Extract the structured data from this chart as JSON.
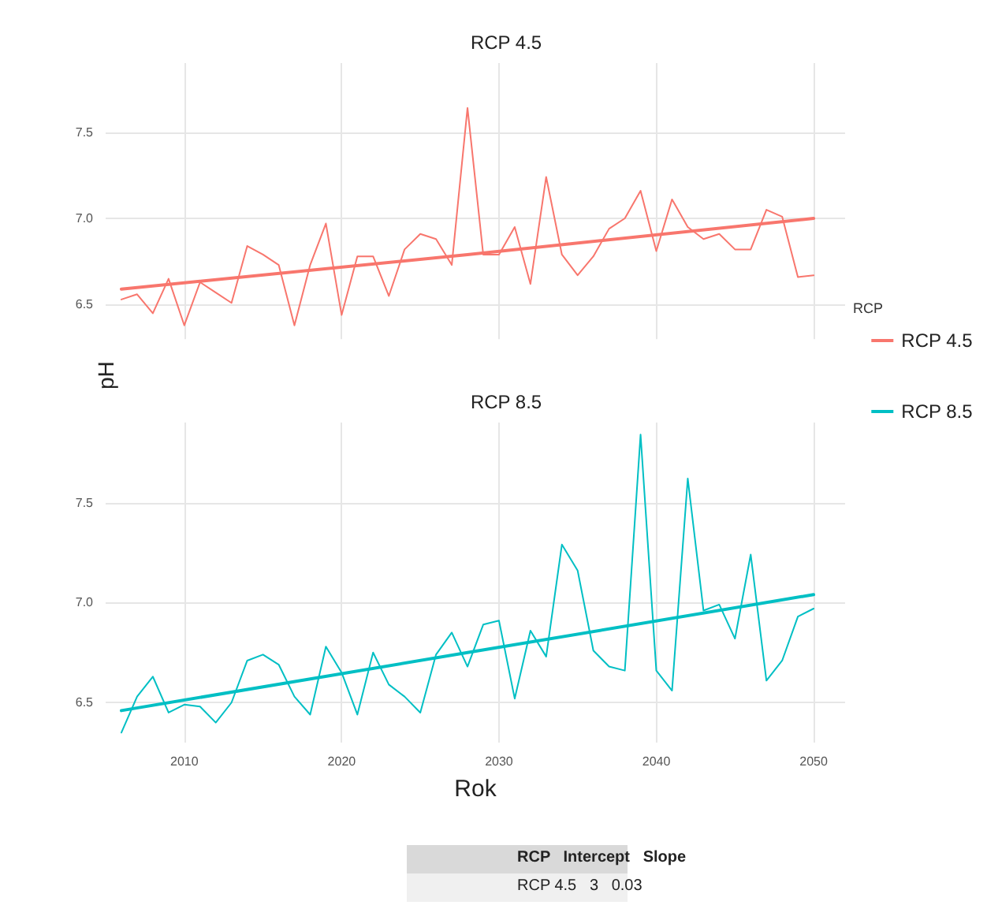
{
  "chart_data": [
    {
      "type": "line",
      "title": "RCP 4.5",
      "ylabel": "pH",
      "legend_title": "RCP",
      "legend": "right",
      "grid": true,
      "tick_labels": "y",
      "xlim": [
        2005,
        2052
      ],
      "xticks": [
        2010,
        2020,
        2030,
        2040,
        2050
      ],
      "ylim": [
        6.3,
        7.9
      ],
      "yticks": [
        {
          "value": 6.5,
          "label": "6.5"
        },
        {
          "value": 7,
          "label": "7.0"
        },
        {
          "value": 7.5,
          "label": "7.5"
        }
      ],
      "x": [
        2006,
        2007,
        2008,
        2009,
        2010,
        2011,
        2012,
        2013,
        2014,
        2015,
        2016,
        2017,
        2018,
        2019,
        2020,
        2021,
        2022,
        2023,
        2024,
        2025,
        2026,
        2027,
        2028,
        2029,
        2030,
        2031,
        2032,
        2033,
        2034,
        2035,
        2036,
        2037,
        2038,
        2039,
        2040,
        2041,
        2042,
        2043,
        2044,
        2045,
        2046,
        2047,
        2048,
        2049,
        2050
      ],
      "series": [
        {
          "name": "RCP 4.5",
          "color": "#f8766d",
          "values": [
            6.53,
            6.56,
            6.45,
            6.65,
            6.38,
            6.63,
            6.57,
            6.51,
            6.84,
            6.79,
            6.73,
            6.38,
            6.73,
            6.97,
            6.44,
            6.78,
            6.78,
            6.55,
            6.82,
            6.91,
            6.88,
            6.73,
            7.64,
            6.79,
            6.79,
            6.95,
            6.62,
            7.24,
            6.79,
            6.67,
            6.78,
            6.94,
            7.0,
            7.16,
            6.81,
            7.11,
            6.95,
            6.88,
            6.91,
            6.82,
            6.82,
            7.05,
            7.01,
            6.66,
            6.67
          ]
        },
        {
          "type": "line",
          "color": "#f8766d",
          "x": [
            2006,
            2028,
            2050
          ],
          "values": [
            6.59,
            6.79,
            7.0
          ]
        }
      ]
    },
    {
      "type": "line",
      "title": "RCP 8.5",
      "xlabel": "Rok",
      "legend": "right",
      "grid": true,
      "xlim": [
        2005,
        2052
      ],
      "xticks": [
        2010,
        2020,
        2030,
        2040,
        2050
      ],
      "ylim": [
        6.3,
        7.9
      ],
      "yticks": [
        {
          "value": 6.5,
          "label": "6.5"
        },
        {
          "value": 7,
          "label": "7.0"
        },
        {
          "value": 7.5,
          "label": "7.5"
        }
      ],
      "x": [
        2006,
        2007,
        2008,
        2009,
        2010,
        2011,
        2012,
        2013,
        2014,
        2015,
        2016,
        2017,
        2018,
        2019,
        2020,
        2021,
        2022,
        2023,
        2024,
        2025,
        2026,
        2027,
        2028,
        2029,
        2030,
        2031,
        2032,
        2033,
        2034,
        2035,
        2036,
        2037,
        2038,
        2039,
        2040,
        2041,
        2042,
        2043,
        2044,
        2045,
        2046,
        2047,
        2048,
        2049,
        2050
      ],
      "series": [
        {
          "name": "RCP 8.5",
          "color": "#00bfc4",
          "values": [
            6.35,
            6.53,
            6.63,
            6.45,
            6.49,
            6.48,
            6.4,
            6.5,
            6.71,
            6.74,
            6.69,
            6.53,
            6.44,
            6.78,
            6.65,
            6.44,
            6.75,
            6.59,
            6.53,
            6.45,
            6.74,
            6.85,
            6.68,
            6.89,
            6.91,
            6.52,
            6.86,
            6.73,
            7.29,
            7.16,
            6.76,
            6.68,
            6.66,
            7.84,
            6.66,
            6.56,
            7.62,
            6.96,
            6.99,
            6.82,
            7.24,
            6.61,
            6.71,
            6.93,
            6.97
          ]
        },
        {
          "type": "line",
          "color": "#00bfc4",
          "x": [
            2006,
            2028,
            2050
          ],
          "values": [
            6.46,
            6.75,
            7.04
          ]
        }
      ],
      "annotations": [
        "RCP   Intercept   Slope",
        "RCP 4.5   3   0.03"
      ]
    }
  ]
}
